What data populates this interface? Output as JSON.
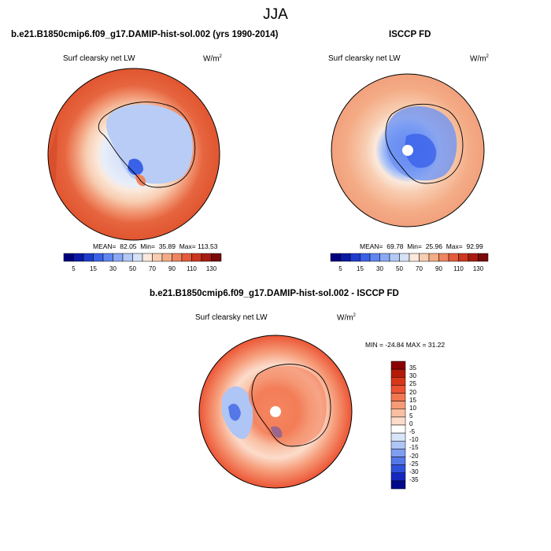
{
  "title": "JJA",
  "panels": [
    {
      "header": "b.e21.B1850cmip6.f09_g17.DAMIP-hist-sol.002 (yrs 1990-2014)",
      "variable": "Surf clearsky net LW",
      "units_base": "W/m",
      "units_exp": "2",
      "stats": {
        "mean_label": "MEAN=",
        "mean": "82.05",
        "min_label": "Min=",
        "min": "35.89",
        "max_label": "Max=",
        "max": "113.53"
      },
      "colorbar_ticks": [
        "5",
        "15",
        "30",
        "50",
        "70",
        "90",
        "110",
        "130"
      ]
    },
    {
      "header": "ISCCP FD",
      "variable": "Surf clearsky net LW",
      "units_base": "W/m",
      "units_exp": "2",
      "stats": {
        "mean_label": "MEAN=",
        "mean": "69.78",
        "min_label": "Min=",
        "min": "25.96",
        "max_label": "Max=",
        "max": "92.99"
      },
      "colorbar_ticks": [
        "5",
        "15",
        "30",
        "50",
        "70",
        "90",
        "110",
        "130"
      ]
    },
    {
      "header": "b.e21.B1850cmip6.f09_g17.DAMIP-hist-sol.002 - ISCCP FD",
      "variable": "Surf clearsky net LW",
      "units_base": "W/m",
      "units_exp": "2",
      "stats_text": "MIN = -24.84 MAX =  31.22",
      "colorbar_ticks": [
        "35",
        "30",
        "25",
        "20",
        "15",
        "10",
        "5",
        "0",
        "-5",
        "-10",
        "-15",
        "-20",
        "-25",
        "-30",
        "-35"
      ]
    }
  ],
  "chart_data": [
    {
      "type": "heatmap",
      "projection": "south-polar-stereographic",
      "variable": "Surf clearsky net LW",
      "units": "W/m2",
      "mean": 82.05,
      "min": 35.89,
      "max": 113.53,
      "levels": [
        5,
        10,
        15,
        20,
        30,
        40,
        50,
        60,
        70,
        80,
        90,
        100,
        110,
        120,
        130
      ],
      "colors": [
        "#00007f",
        "#0a1aa6",
        "#1e3ccc",
        "#3a62e8",
        "#5f86f0",
        "#8aa9f5",
        "#b3c8f7",
        "#d6e2f5",
        "#fbe9dc",
        "#f8cdb1",
        "#f4ac86",
        "#ee8560",
        "#e35c3c",
        "#cc3720",
        "#a81c10",
        "#7a0a0a"
      ]
    },
    {
      "type": "heatmap",
      "projection": "south-polar-stereographic",
      "variable": "Surf clearsky net LW",
      "units": "W/m2",
      "mean": 69.78,
      "min": 25.96,
      "max": 92.99,
      "levels": [
        5,
        10,
        15,
        20,
        30,
        40,
        50,
        60,
        70,
        80,
        90,
        100,
        110,
        120,
        130
      ],
      "colors": [
        "#00007f",
        "#0a1aa6",
        "#1e3ccc",
        "#3a62e8",
        "#5f86f0",
        "#8aa9f5",
        "#b3c8f7",
        "#d6e2f5",
        "#fbe9dc",
        "#f8cdb1",
        "#f4ac86",
        "#ee8560",
        "#e35c3c",
        "#cc3720",
        "#a81c10",
        "#7a0a0a"
      ]
    },
    {
      "type": "heatmap",
      "projection": "south-polar-stereographic",
      "variable": "Surf clearsky net LW",
      "units": "W/m2",
      "min": -24.84,
      "max": 31.22,
      "levels": [
        35,
        30,
        25,
        20,
        15,
        10,
        5,
        0,
        -5,
        -10,
        -15,
        -20,
        -25,
        -30,
        -35
      ],
      "colors": [
        "#8b0000",
        "#b41a0a",
        "#d8361a",
        "#eb5232",
        "#f2764f",
        "#f69b78",
        "#f9bfa3",
        "#fcdccb",
        "#ffffff",
        "#d8e4f8",
        "#aec5f5",
        "#809ef0",
        "#5478e8",
        "#2f52dc",
        "#1428c0",
        "#000a8a"
      ]
    }
  ]
}
